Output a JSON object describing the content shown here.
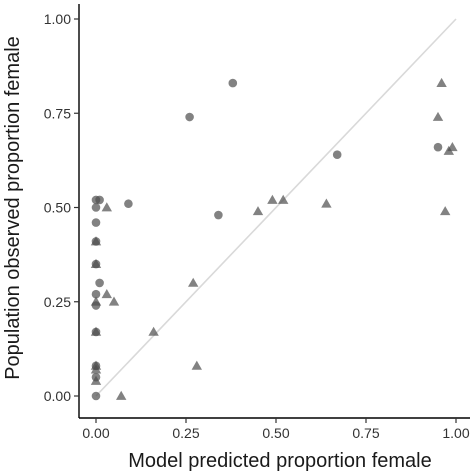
{
  "chart_data": {
    "type": "scatter",
    "xlabel": "Model predicted proportion female",
    "ylabel": "Population observed proportion female",
    "xlim": [
      0,
      1
    ],
    "ylim": [
      0,
      1
    ],
    "x_ticks": [
      "0.00",
      "0.25",
      "0.50",
      "0.75",
      "1.00"
    ],
    "y_ticks": [
      "0.00",
      "0.25",
      "0.50",
      "0.75",
      "1.00"
    ],
    "grid": false,
    "legend": "none",
    "reference_line": {
      "x": [
        0,
        1
      ],
      "y": [
        0,
        1
      ],
      "color": "#d9d9d9"
    },
    "point_color": "#4d4d4d",
    "point_opacity": 0.7,
    "series": [
      {
        "marker": "circle",
        "points": [
          {
            "x": 0.0,
            "y": 0.52
          },
          {
            "x": 0.0,
            "y": 0.5
          },
          {
            "x": 0.0,
            "y": 0.46
          },
          {
            "x": 0.0,
            "y": 0.41
          },
          {
            "x": 0.0,
            "y": 0.35
          },
          {
            "x": 0.0,
            "y": 0.27
          },
          {
            "x": 0.0,
            "y": 0.24
          },
          {
            "x": 0.0,
            "y": 0.17
          },
          {
            "x": 0.0,
            "y": 0.08
          },
          {
            "x": 0.0,
            "y": 0.05
          },
          {
            "x": 0.0,
            "y": 0.0
          },
          {
            "x": 0.01,
            "y": 0.3
          },
          {
            "x": 0.01,
            "y": 0.52
          },
          {
            "x": 0.09,
            "y": 0.51
          },
          {
            "x": 0.26,
            "y": 0.74
          },
          {
            "x": 0.34,
            "y": 0.48
          },
          {
            "x": 0.38,
            "y": 0.83
          },
          {
            "x": 0.67,
            "y": 0.64
          },
          {
            "x": 0.95,
            "y": 0.66
          }
        ]
      },
      {
        "marker": "triangle",
        "points": [
          {
            "x": 0.0,
            "y": 0.41
          },
          {
            "x": 0.0,
            "y": 0.35
          },
          {
            "x": 0.0,
            "y": 0.25
          },
          {
            "x": 0.0,
            "y": 0.17
          },
          {
            "x": 0.0,
            "y": 0.08
          },
          {
            "x": 0.0,
            "y": 0.07
          },
          {
            "x": 0.0,
            "y": 0.04
          },
          {
            "x": 0.03,
            "y": 0.5
          },
          {
            "x": 0.03,
            "y": 0.27
          },
          {
            "x": 0.05,
            "y": 0.25
          },
          {
            "x": 0.07,
            "y": 0.0
          },
          {
            "x": 0.16,
            "y": 0.17
          },
          {
            "x": 0.27,
            "y": 0.3
          },
          {
            "x": 0.28,
            "y": 0.08
          },
          {
            "x": 0.45,
            "y": 0.49
          },
          {
            "x": 0.49,
            "y": 0.52
          },
          {
            "x": 0.52,
            "y": 0.52
          },
          {
            "x": 0.64,
            "y": 0.51
          },
          {
            "x": 0.95,
            "y": 0.74
          },
          {
            "x": 0.96,
            "y": 0.83
          },
          {
            "x": 0.97,
            "y": 0.49
          },
          {
            "x": 0.98,
            "y": 0.65
          },
          {
            "x": 0.99,
            "y": 0.66
          }
        ]
      }
    ]
  }
}
